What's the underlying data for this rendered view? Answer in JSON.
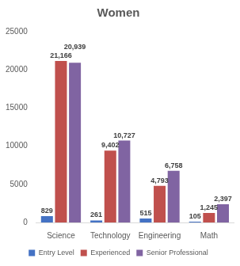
{
  "chart_data": {
    "type": "bar",
    "title": "Women",
    "categories": [
      "Science",
      "Technology",
      "Engineering",
      "Math"
    ],
    "series": [
      {
        "name": "Entry Level",
        "color": "#4472c4",
        "values": [
          829,
          261,
          515,
          105
        ]
      },
      {
        "name": "Experienced",
        "color": "#c0504d",
        "values": [
          21166,
          9402,
          4793,
          1245
        ],
        "value_labels": [
          "21,166",
          "9,402",
          "4,793",
          "1,245"
        ]
      },
      {
        "name": "Senior Professional",
        "color": "#8064a2",
        "values": [
          20939,
          10727,
          6758,
          2397
        ],
        "value_labels": [
          "20,939",
          "10,727",
          "6,758",
          "2,397"
        ]
      }
    ],
    "ylim": [
      0,
      25000
    ],
    "yticks": [
      0,
      5000,
      10000,
      15000,
      20000,
      25000
    ],
    "grid": false,
    "legend": "bottom",
    "data_labels": true
  }
}
